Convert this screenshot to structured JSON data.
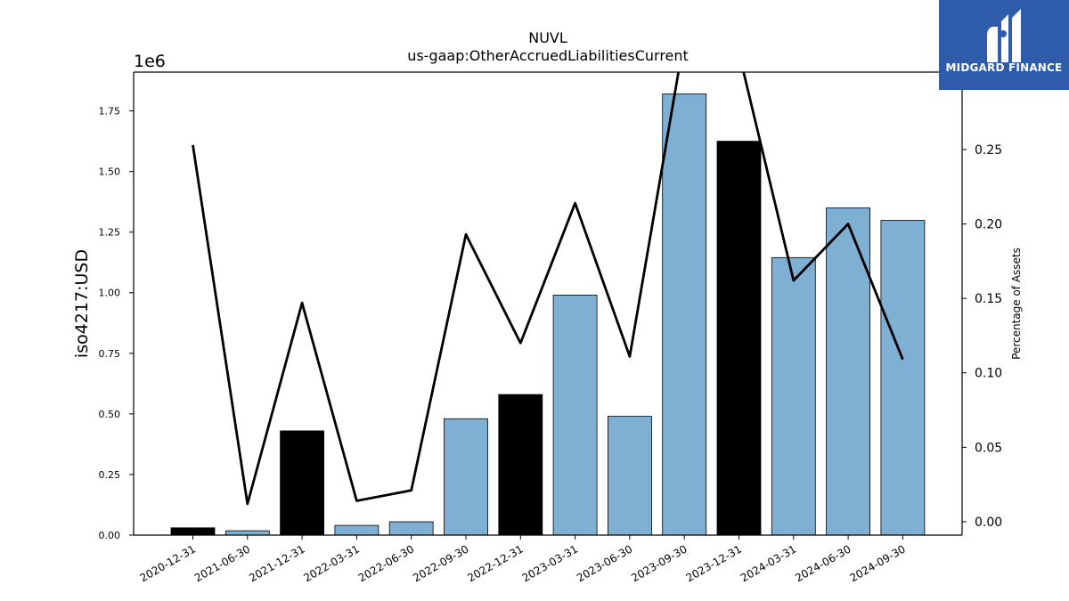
{
  "brand": {
    "name": "MIDGARD FINANCE"
  },
  "chart_data": {
    "type": "bar",
    "title": "NUVL",
    "subtitle": "us-gaap:OtherAccruedLiabilitiesCurrent",
    "ylabel": "iso4217:USD",
    "y2label": "Percentage of Assets",
    "y_offset_label": "1e6",
    "categories": [
      "2020-12-31",
      "2021-06-30",
      "2021-12-31",
      "2022-03-31",
      "2022-06-30",
      "2022-09-30",
      "2022-12-31",
      "2023-03-31",
      "2023-06-30",
      "2023-09-30",
      "2023-12-31",
      "2024-03-31",
      "2024-06-30",
      "2024-09-30"
    ],
    "values": [
      30000,
      18000,
      430000,
      40000,
      55000,
      480000,
      580000,
      990000,
      490000,
      1820000,
      1625000,
      1145000,
      1350000,
      1298000
    ],
    "bar_colors": [
      "#000000",
      "#7fafd3",
      "#000000",
      "#7fafd3",
      "#7fafd3",
      "#7fafd3",
      "#000000",
      "#7fafd3",
      "#7fafd3",
      "#7fafd3",
      "#000000",
      "#7fafd3",
      "#7fafd3",
      "#7fafd3"
    ],
    "y_ticks": [
      "0.00",
      "0.25",
      "0.50",
      "0.75",
      "1.00",
      "1.25",
      "1.50",
      "1.75"
    ],
    "y_tick_values": [
      0,
      250000,
      500000,
      750000,
      1000000,
      1250000,
      1500000,
      1750000
    ],
    "ylim": [
      0,
      1910000
    ],
    "line_series": {
      "values": [
        0.253,
        0.012,
        0.147,
        0.014,
        0.021,
        0.193,
        0.12,
        0.214,
        0.111,
        0.325,
        0.315,
        0.162,
        0.2,
        0.109
      ],
      "color": "#000000"
    },
    "y2_ticks": [
      "0.00",
      "0.05",
      "0.10",
      "0.15",
      "0.20",
      "0.25"
    ],
    "y2_tick_values": [
      0,
      0.05,
      0.1,
      0.15,
      0.2,
      0.25
    ],
    "y2lim": [
      -0.009,
      0.302
    ],
    "grid": false
  }
}
